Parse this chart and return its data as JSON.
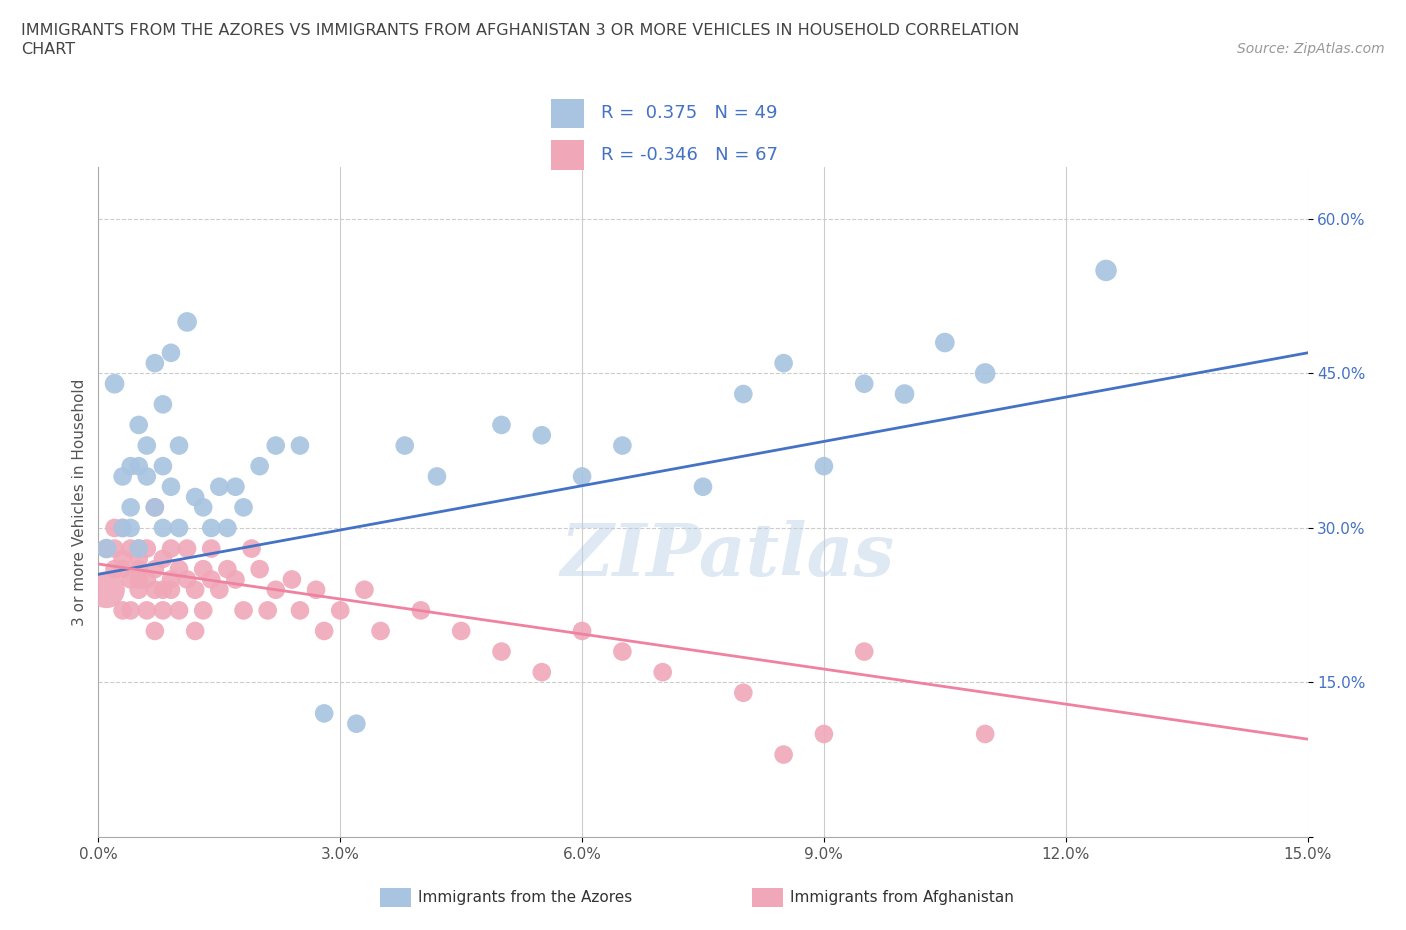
{
  "title_line1": "IMMIGRANTS FROM THE AZORES VS IMMIGRANTS FROM AFGHANISTAN 3 OR MORE VEHICLES IN HOUSEHOLD CORRELATION",
  "title_line2": "CHART",
  "source": "Source: ZipAtlas.com",
  "ylabel": "3 or more Vehicles in Household",
  "xmin": 0.0,
  "xmax": 0.15,
  "ymin": 0.0,
  "ymax": 0.65,
  "yticks": [
    0.0,
    0.15,
    0.3,
    0.45,
    0.6
  ],
  "ytick_labels": [
    "",
    "15.0%",
    "30.0%",
    "45.0%",
    "60.0%"
  ],
  "xticks": [
    0.0,
    0.03,
    0.06,
    0.09,
    0.12,
    0.15
  ],
  "xtick_labels": [
    "0.0%",
    "3.0%",
    "6.0%",
    "9.0%",
    "12.0%",
    "15.0%"
  ],
  "azores_R": 0.375,
  "azores_N": 49,
  "afghanistan_R": -0.346,
  "afghanistan_N": 67,
  "azores_color": "#a8c4e0",
  "afghanistan_color": "#f0a8b8",
  "azores_line_color": "#4472c4",
  "afghanistan_line_color": "#ee82a0",
  "watermark": "ZIPatlas",
  "azores_line_y0": 0.255,
  "azores_line_y1": 0.47,
  "afghanistan_line_y0": 0.265,
  "afghanistan_line_y1": 0.095,
  "azores_x": [
    0.001,
    0.002,
    0.003,
    0.003,
    0.004,
    0.004,
    0.004,
    0.005,
    0.005,
    0.005,
    0.006,
    0.006,
    0.007,
    0.007,
    0.008,
    0.008,
    0.008,
    0.009,
    0.009,
    0.01,
    0.01,
    0.011,
    0.012,
    0.013,
    0.014,
    0.015,
    0.016,
    0.017,
    0.018,
    0.02,
    0.022,
    0.025,
    0.028,
    0.032,
    0.038,
    0.042,
    0.05,
    0.055,
    0.06,
    0.065,
    0.075,
    0.08,
    0.085,
    0.09,
    0.095,
    0.1,
    0.105,
    0.11,
    0.125
  ],
  "azores_y": [
    0.28,
    0.44,
    0.35,
    0.3,
    0.36,
    0.3,
    0.32,
    0.36,
    0.4,
    0.28,
    0.38,
    0.35,
    0.32,
    0.46,
    0.36,
    0.3,
    0.42,
    0.34,
    0.47,
    0.38,
    0.3,
    0.5,
    0.33,
    0.32,
    0.3,
    0.34,
    0.3,
    0.34,
    0.32,
    0.36,
    0.38,
    0.38,
    0.12,
    0.11,
    0.38,
    0.35,
    0.4,
    0.39,
    0.35,
    0.38,
    0.34,
    0.43,
    0.46,
    0.36,
    0.44,
    0.43,
    0.48,
    0.45,
    0.55
  ],
  "azores_size": [
    200,
    200,
    180,
    180,
    180,
    180,
    180,
    180,
    180,
    180,
    180,
    180,
    180,
    180,
    180,
    180,
    180,
    180,
    180,
    180,
    180,
    200,
    180,
    180,
    180,
    180,
    180,
    180,
    180,
    180,
    180,
    180,
    180,
    180,
    180,
    180,
    180,
    180,
    180,
    180,
    180,
    180,
    180,
    180,
    180,
    200,
    200,
    220,
    240
  ],
  "afghanistan_x": [
    0.001,
    0.001,
    0.002,
    0.002,
    0.002,
    0.003,
    0.003,
    0.003,
    0.003,
    0.004,
    0.004,
    0.004,
    0.005,
    0.005,
    0.005,
    0.005,
    0.005,
    0.006,
    0.006,
    0.006,
    0.007,
    0.007,
    0.007,
    0.007,
    0.008,
    0.008,
    0.008,
    0.009,
    0.009,
    0.009,
    0.01,
    0.01,
    0.011,
    0.011,
    0.012,
    0.012,
    0.013,
    0.013,
    0.014,
    0.014,
    0.015,
    0.016,
    0.017,
    0.018,
    0.019,
    0.02,
    0.021,
    0.022,
    0.024,
    0.025,
    0.027,
    0.028,
    0.03,
    0.033,
    0.035,
    0.04,
    0.045,
    0.05,
    0.055,
    0.06,
    0.065,
    0.07,
    0.08,
    0.085,
    0.09,
    0.095,
    0.11
  ],
  "afghanistan_y": [
    0.24,
    0.28,
    0.26,
    0.3,
    0.28,
    0.22,
    0.27,
    0.3,
    0.26,
    0.25,
    0.28,
    0.22,
    0.26,
    0.28,
    0.25,
    0.24,
    0.27,
    0.25,
    0.28,
    0.22,
    0.24,
    0.26,
    0.2,
    0.32,
    0.24,
    0.27,
    0.22,
    0.25,
    0.28,
    0.24,
    0.26,
    0.22,
    0.25,
    0.28,
    0.24,
    0.2,
    0.26,
    0.22,
    0.25,
    0.28,
    0.24,
    0.26,
    0.25,
    0.22,
    0.28,
    0.26,
    0.22,
    0.24,
    0.25,
    0.22,
    0.24,
    0.2,
    0.22,
    0.24,
    0.2,
    0.22,
    0.2,
    0.18,
    0.16,
    0.2,
    0.18,
    0.16,
    0.14,
    0.08,
    0.1,
    0.18,
    0.1
  ],
  "afghanistan_size": [
    700,
    180,
    180,
    180,
    180,
    180,
    180,
    180,
    180,
    180,
    180,
    180,
    180,
    180,
    180,
    180,
    180,
    180,
    180,
    180,
    180,
    180,
    180,
    180,
    180,
    180,
    180,
    180,
    180,
    180,
    180,
    180,
    180,
    180,
    180,
    180,
    180,
    180,
    180,
    180,
    180,
    180,
    180,
    180,
    180,
    180,
    180,
    180,
    180,
    180,
    180,
    180,
    180,
    180,
    180,
    180,
    180,
    180,
    180,
    180,
    180,
    180,
    180,
    180,
    180,
    180,
    180
  ]
}
